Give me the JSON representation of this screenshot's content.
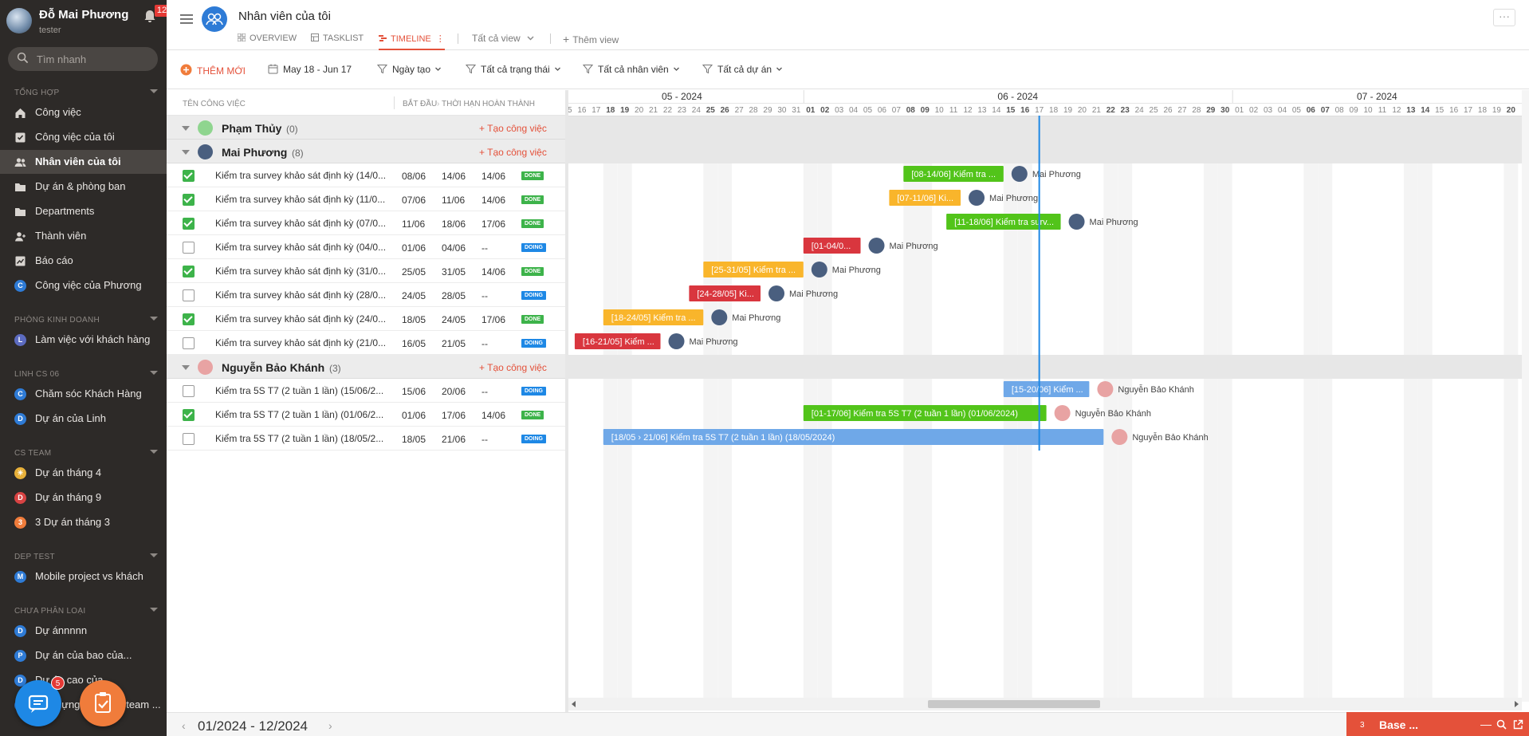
{
  "user": {
    "name": "Đỗ Mai Phương",
    "role": "tester",
    "notifications": "12"
  },
  "sidebar": {
    "search_placeholder": "Tìm nhanh",
    "sections": [
      {
        "title": "Tổng hợp",
        "items": [
          {
            "label": "Công việc",
            "icon": "home-icon"
          },
          {
            "label": "Công việc của tôi",
            "icon": "check-square-icon"
          },
          {
            "label": "Nhân viên của tôi",
            "icon": "users-icon",
            "active": true
          },
          {
            "label": "Dự án & phòng ban",
            "icon": "folder-icon"
          },
          {
            "label": "Departments",
            "icon": "folder-icon"
          },
          {
            "label": "Thành viên",
            "icon": "user-plus-icon"
          },
          {
            "label": "Báo cáo",
            "icon": "chart-icon"
          },
          {
            "label": "Công việc của Phương",
            "letter": "C",
            "color": "#2e7bd6"
          }
        ]
      },
      {
        "title": "Phòng kinh doanh",
        "items": [
          {
            "label": "Làm việc với khách hàng",
            "letter": "L",
            "color": "#5c6bc0"
          }
        ]
      },
      {
        "title": "Linh CS 06",
        "items": [
          {
            "label": "Chăm sóc Khách Hàng",
            "letter": "C",
            "color": "#2e7bd6"
          },
          {
            "label": "Dự án của Linh",
            "letter": "D",
            "color": "#2e7bd6"
          }
        ]
      },
      {
        "title": "CS TEAM",
        "items": [
          {
            "label": "Dự án tháng 4",
            "letter": "☀",
            "color": "#e8b13a"
          },
          {
            "label": "Dự án tháng 9",
            "letter": "D",
            "color": "#d84343"
          },
          {
            "label": "3 Dự án tháng 3",
            "letter": "3",
            "color": "#f07c3b"
          }
        ]
      },
      {
        "title": "DEP TEST",
        "items": [
          {
            "label": "Mobile project vs khách",
            "letter": "M",
            "color": "#2e7bd6"
          }
        ]
      },
      {
        "title": "Chưa phân loại",
        "items": [
          {
            "label": "Dự ánnnnn",
            "letter": "D",
            "color": "#2e7bd6"
          },
          {
            "label": "Dự án của bao của...",
            "letter": "P",
            "color": "#2e7bd6"
          },
          {
            "label": "Dự án cao của",
            "letter": "D",
            "color": "#2e7bd6"
          },
          {
            "label": "Xây dựng quy trình team ...",
            "letter": "X",
            "color": "#2e7bd6"
          }
        ]
      }
    ],
    "chat_badge": "5"
  },
  "header": {
    "title": "Nhân viên của tôi",
    "tabs": [
      {
        "label": "OVERVIEW"
      },
      {
        "label": "TASKLIST"
      },
      {
        "label": "TIMELINE",
        "active": true
      }
    ],
    "view_select": "Tất cả view",
    "add_view": "Thêm view"
  },
  "toolbar": {
    "add_new": "THÊM MỚI",
    "date_range": "May 18 - Jun 17",
    "filter_created": "Ngày tạo",
    "filter_status": "Tất cả trạng thái",
    "filter_staff": "Tất cả nhân viên",
    "filter_project": "Tất cả dự án"
  },
  "columns": {
    "name": "TÊN CÔNG VIỆC",
    "start": "BẮT ĐẦU",
    "due": "THỜI HẠN",
    "done": "HOÀN THÀNH"
  },
  "create_task_label": "+ Tạo công việc",
  "groups": [
    {
      "name": "Phạm Thủy",
      "count": "(0)",
      "avatar_color": "#8fd58f",
      "tasks": []
    },
    {
      "name": "Mai Phương",
      "count": "(8)",
      "avatar_color": "#4a5f7f",
      "tasks": [
        {
          "name": "Kiểm tra survey khảo sát định kỳ (14/0...",
          "start": "08/06",
          "due": "14/06",
          "done": "14/06",
          "status": "DONE",
          "checked": true,
          "bar_label": "[08-14/06] Kiểm tra ...",
          "bar_start": "2024-06-08",
          "bar_end": "2024-06-14",
          "bar_color": "#52c41a"
        },
        {
          "name": "Kiểm tra survey khảo sát định kỳ (11/0...",
          "start": "07/06",
          "due": "11/06",
          "done": "14/06",
          "status": "DONE",
          "checked": true,
          "bar_label": "[07-11/06] Ki...",
          "bar_start": "2024-06-07",
          "bar_end": "2024-06-11",
          "bar_color": "#f9b52b"
        },
        {
          "name": "Kiểm tra survey khảo sát định kỳ (07/0...",
          "start": "11/06",
          "due": "18/06",
          "done": "17/06",
          "status": "DONE",
          "checked": true,
          "bar_label": "[11-18/06] Kiểm tra surv...",
          "bar_start": "2024-06-11",
          "bar_end": "2024-06-18",
          "bar_color": "#52c41a"
        },
        {
          "name": "Kiểm tra survey khảo sát định kỳ (04/0...",
          "start": "01/06",
          "due": "04/06",
          "done": "--",
          "status": "DOING",
          "checked": false,
          "bar_label": "[01-04/0...",
          "bar_start": "2024-06-01",
          "bar_end": "2024-06-04",
          "bar_color": "#d9363e"
        },
        {
          "name": "Kiểm tra survey khảo sát định kỳ (31/0...",
          "start": "25/05",
          "due": "31/05",
          "done": "14/06",
          "status": "DONE",
          "checked": true,
          "bar_label": "[25-31/05] Kiểm tra ...",
          "bar_start": "2024-05-25",
          "bar_end": "2024-05-31",
          "bar_color": "#f9b52b"
        },
        {
          "name": "Kiểm tra survey khảo sát định kỳ (28/0...",
          "start": "24/05",
          "due": "28/05",
          "done": "--",
          "status": "DOING",
          "checked": false,
          "bar_label": "[24-28/05] Ki...",
          "bar_start": "2024-05-24",
          "bar_end": "2024-05-28",
          "bar_color": "#d9363e"
        },
        {
          "name": "Kiểm tra survey khảo sát định kỳ (24/0...",
          "start": "18/05",
          "due": "24/05",
          "done": "17/06",
          "status": "DONE",
          "checked": true,
          "bar_label": "[18-24/05] Kiểm tra ...",
          "bar_start": "2024-05-18",
          "bar_end": "2024-05-24",
          "bar_color": "#f9b52b"
        },
        {
          "name": "Kiểm tra survey khảo sát định kỳ (21/0...",
          "start": "16/05",
          "due": "21/05",
          "done": "--",
          "status": "DOING",
          "checked": false,
          "bar_label": "[16-21/05] Kiểm ...",
          "bar_start": "2024-05-16",
          "bar_end": "2024-05-21",
          "bar_color": "#d9363e"
        }
      ]
    },
    {
      "name": "Nguyễn Bảo Khánh",
      "count": "(3)",
      "avatar_color": "#e8a3a3",
      "tasks": [
        {
          "name": "Kiểm tra 5S T7 (2 tuần 1 lần) (15/06/2...",
          "start": "15/06",
          "due": "20/06",
          "done": "--",
          "status": "DOING",
          "checked": false,
          "bar_label": "[15-20/06] Kiểm ...",
          "bar_start": "2024-06-15",
          "bar_end": "2024-06-20",
          "bar_color": "#6fa8e8"
        },
        {
          "name": "Kiểm tra 5S T7 (2 tuần 1 lần) (01/06/2...",
          "start": "01/06",
          "due": "17/06",
          "done": "14/06",
          "status": "DONE",
          "checked": true,
          "bar_label": "[01-17/06] Kiểm tra 5S T7 (2 tuần 1 lần) (01/06/2024)",
          "bar_start": "2024-06-01",
          "bar_end": "2024-06-17",
          "bar_color": "#52c41a"
        },
        {
          "name": "Kiểm tra 5S T7 (2 tuần 1 lần) (18/05/2...",
          "start": "18/05",
          "due": "21/06",
          "done": "--",
          "status": "DOING",
          "checked": false,
          "bar_label": "[18/05 › 21/06] Kiểm tra 5S T7 (2 tuần 1 lần) (18/05/2024)",
          "bar_start": "2024-05-18",
          "bar_end": "2024-06-21",
          "bar_color": "#6fa8e8"
        }
      ]
    }
  ],
  "timeline": {
    "months": [
      {
        "label": "05 - 2024",
        "first_day": "2024-05-15"
      },
      {
        "label": "06 - 2024",
        "first_day": "2024-06-01"
      },
      {
        "label": "07 - 2024",
        "first_day": "2024-07-01"
      }
    ],
    "visible_start": "2024-05-15",
    "visible_end": "2024-07-20",
    "today": "2024-06-17"
  },
  "status_colors": {
    "DONE": "#3db34a",
    "DOING": "#1e88e5"
  },
  "footer": {
    "range": "01/2024 - 12/2024",
    "base_count": "3",
    "base_label": "Base ..."
  }
}
